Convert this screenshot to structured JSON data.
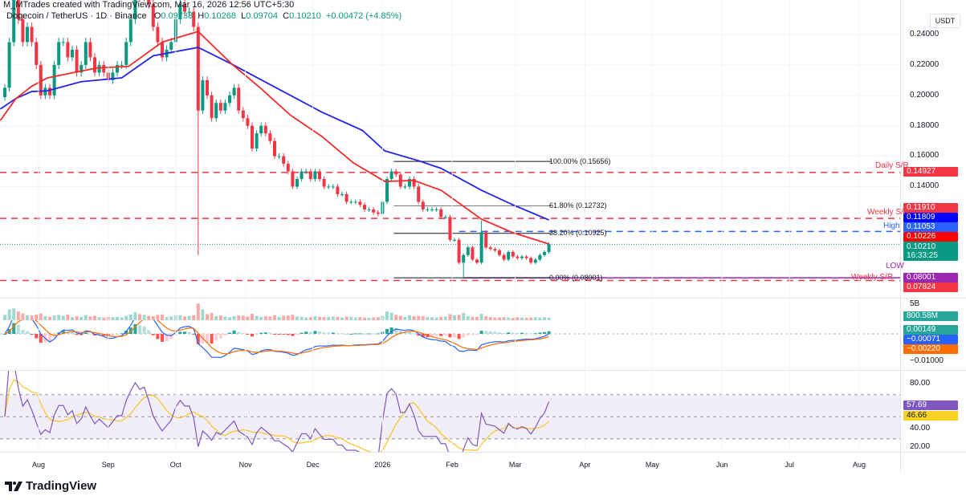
{
  "header": {
    "attribution": "M_MTrades created with TradingView.com, Mar 16, 2026 12:56 UTC+5:30",
    "symbol": "Dogecoin / TetherUS · 1D · Binance",
    "o_label": "O",
    "o": "0.09738",
    "h_label": "H",
    "h": "0.10268",
    "l_label": "L",
    "l": "0.09704",
    "c_label": "C",
    "c": "0.10210",
    "change": "+0.00472 (+4.85%)"
  },
  "price_axis": {
    "currency": "USDT",
    "ticks": [
      "0.24000",
      "0.22000",
      "0.20000",
      "0.18000",
      "0.16000",
      "0.14000"
    ],
    "tags": {
      "daily_sr": "0.14927",
      "weekly_sr": "0.11910",
      "ma_blue": "0.11809",
      "high": "0.11053",
      "ma_red": "0.10226",
      "last_price": "0.10210",
      "countdown": "16:33:25",
      "low": "0.08001",
      "weekly_sr_2": "0.07824"
    }
  },
  "lines": {
    "daily_sr_label": "Daily S/R",
    "weekly_sr_label": "Weekly S/R",
    "high_label": "High",
    "low_label": "LOW",
    "weekly_sr_2_label": "Weekly S/R"
  },
  "fib": {
    "l100": "100.00% (0.15656)",
    "l618": "61.80% (0.12732)",
    "l382": "38.20% (0.10925)",
    "l0": "0.00% (0.08001)"
  },
  "volume_axis": {
    "tick": "5B",
    "tag": "800.58M"
  },
  "macd_axis": {
    "tick": "−0.01000",
    "hist": "0.00149",
    "macd": "−0.00071",
    "signal": "−0.00220"
  },
  "rsi_axis": {
    "ticks": [
      "80.00",
      "40.00",
      "20.00"
    ],
    "rsi": "57.69",
    "rsi_ma": "46.66"
  },
  "time_axis": {
    "months": [
      [
        "Aug",
        "2025-08-01"
      ],
      [
        "Sep",
        "2025-09-01"
      ],
      [
        "Oct",
        "2025-10-01"
      ],
      [
        "Nov",
        "2025-11-01"
      ],
      [
        "Dec",
        "2025-12-01"
      ],
      [
        "2026",
        "2026-01-01"
      ],
      [
        "Feb",
        "2026-02-01"
      ],
      [
        "Mar",
        "2026-03-01"
      ],
      [
        "Apr",
        "2026-04-01"
      ],
      [
        "May",
        "2026-05-01"
      ],
      [
        "Jun",
        "2026-06-01"
      ],
      [
        "Jul",
        "2026-07-01"
      ],
      [
        "Aug",
        "2026-08-01"
      ]
    ]
  },
  "footer": {
    "brand": "TradingView"
  },
  "chart_data": {
    "type": "candlestick",
    "title": "Dogecoin / TetherUS · 1D · Binance",
    "colors": {
      "up": "#089981",
      "down": "#f23645",
      "ma_fast": "#f52a2a",
      "ma_slow": "#2424e8",
      "high_line": "#2962ff",
      "low_line": "#9c27b0",
      "rsi": "#7e57c2",
      "rsi_ma": "#f7c325",
      "macd": "#2962ff",
      "signal": "#ff6d00"
    },
    "ylim": [
      0.075,
      0.257
    ],
    "candles_date_close_volumeB": [
      [
        "2025-07-17",
        0.205,
        1.6
      ],
      [
        "2025-07-19",
        0.235,
        3.2
      ],
      [
        "2025-07-21",
        0.265,
        3.5
      ],
      [
        "2025-07-23",
        0.25,
        2.6
      ],
      [
        "2025-07-25",
        0.235,
        2.0
      ],
      [
        "2025-07-27",
        0.245,
        1.5
      ],
      [
        "2025-07-29",
        0.235,
        1.4
      ],
      [
        "2025-07-31",
        0.22,
        1.7
      ],
      [
        "2025-08-02",
        0.2,
        2.0
      ],
      [
        "2025-08-04",
        0.205,
        1.2
      ],
      [
        "2025-08-06",
        0.2,
        1.0
      ],
      [
        "2025-08-08",
        0.22,
        1.4
      ],
      [
        "2025-08-10",
        0.235,
        1.6
      ],
      [
        "2025-08-12",
        0.235,
        1.3
      ],
      [
        "2025-08-14",
        0.225,
        1.7
      ],
      [
        "2025-08-16",
        0.23,
        0.9
      ],
      [
        "2025-08-18",
        0.215,
        1.2
      ],
      [
        "2025-08-20",
        0.22,
        1.0
      ],
      [
        "2025-08-22",
        0.235,
        1.5
      ],
      [
        "2025-08-24",
        0.225,
        1.1
      ],
      [
        "2025-08-26",
        0.215,
        1.3
      ],
      [
        "2025-08-28",
        0.22,
        0.9
      ],
      [
        "2025-08-30",
        0.215,
        0.8
      ],
      [
        "2025-09-01",
        0.21,
        1.0
      ],
      [
        "2025-09-03",
        0.215,
        0.9
      ],
      [
        "2025-09-05",
        0.22,
        1.0
      ],
      [
        "2025-09-07",
        0.22,
        0.8
      ],
      [
        "2025-09-09",
        0.235,
        1.3
      ],
      [
        "2025-09-11",
        0.25,
        1.7
      ],
      [
        "2025-09-13",
        0.27,
        2.4
      ],
      [
        "2025-09-15",
        0.265,
        1.8
      ],
      [
        "2025-09-17",
        0.27,
        1.6
      ],
      [
        "2025-09-19",
        0.26,
        1.3
      ],
      [
        "2025-09-21",
        0.245,
        1.2
      ],
      [
        "2025-09-23",
        0.235,
        1.6
      ],
      [
        "2025-09-25",
        0.225,
        1.7
      ],
      [
        "2025-09-27",
        0.23,
        1.0
      ],
      [
        "2025-09-29",
        0.235,
        1.1
      ],
      [
        "2025-10-01",
        0.25,
        1.4
      ],
      [
        "2025-10-03",
        0.26,
        1.5
      ],
      [
        "2025-10-05",
        0.255,
        1.1
      ],
      [
        "2025-10-07",
        0.255,
        1.3
      ],
      [
        "2025-10-09",
        0.245,
        1.5
      ],
      [
        "2025-10-11",
        0.19,
        5.0
      ],
      [
        "2025-10-13",
        0.21,
        3.2
      ],
      [
        "2025-10-15",
        0.2,
        1.8
      ],
      [
        "2025-10-17",
        0.185,
        2.1
      ],
      [
        "2025-10-19",
        0.195,
        1.2
      ],
      [
        "2025-10-21",
        0.19,
        1.4
      ],
      [
        "2025-10-23",
        0.195,
        1.1
      ],
      [
        "2025-10-25",
        0.2,
        0.9
      ],
      [
        "2025-10-27",
        0.205,
        1.2
      ],
      [
        "2025-10-29",
        0.19,
        1.4
      ],
      [
        "2025-10-31",
        0.185,
        1.3
      ],
      [
        "2025-11-02",
        0.18,
        1.1
      ],
      [
        "2025-11-04",
        0.165,
        1.9
      ],
      [
        "2025-11-06",
        0.175,
        1.3
      ],
      [
        "2025-11-08",
        0.18,
        1.0
      ],
      [
        "2025-11-10",
        0.175,
        1.2
      ],
      [
        "2025-11-12",
        0.17,
        1.1
      ],
      [
        "2025-11-14",
        0.16,
        1.5
      ],
      [
        "2025-11-16",
        0.16,
        1.0
      ],
      [
        "2025-11-18",
        0.155,
        1.3
      ],
      [
        "2025-11-20",
        0.15,
        1.4
      ],
      [
        "2025-11-22",
        0.14,
        1.6
      ],
      [
        "2025-11-24",
        0.145,
        1.1
      ],
      [
        "2025-11-26",
        0.15,
        1.0
      ],
      [
        "2025-11-28",
        0.15,
        0.8
      ],
      [
        "2025-11-30",
        0.145,
        0.9
      ],
      [
        "2025-12-02",
        0.15,
        1.2
      ],
      [
        "2025-12-04",
        0.145,
        1.0
      ],
      [
        "2025-12-06",
        0.14,
        0.9
      ],
      [
        "2025-12-08",
        0.14,
        1.0
      ],
      [
        "2025-12-10",
        0.14,
        1.1
      ],
      [
        "2025-12-12",
        0.135,
        1.0
      ],
      [
        "2025-12-14",
        0.135,
        0.8
      ],
      [
        "2025-12-16",
        0.13,
        1.1
      ],
      [
        "2025-12-18",
        0.13,
        1.0
      ],
      [
        "2025-12-20",
        0.13,
        0.8
      ],
      [
        "2025-12-22",
        0.128,
        0.9
      ],
      [
        "2025-12-24",
        0.125,
        0.8
      ],
      [
        "2025-12-26",
        0.125,
        0.7
      ],
      [
        "2025-12-28",
        0.123,
        0.8
      ],
      [
        "2025-12-30",
        0.122,
        0.9
      ],
      [
        "2026-01-01",
        0.13,
        1.3
      ],
      [
        "2026-01-03",
        0.145,
        2.6
      ],
      [
        "2026-01-05",
        0.15,
        2.2
      ],
      [
        "2026-01-07",
        0.148,
        1.6
      ],
      [
        "2026-01-09",
        0.14,
        1.3
      ],
      [
        "2026-01-11",
        0.14,
        1.0
      ],
      [
        "2026-01-13",
        0.145,
        1.5
      ],
      [
        "2026-01-15",
        0.14,
        1.2
      ],
      [
        "2026-01-17",
        0.13,
        1.3
      ],
      [
        "2026-01-19",
        0.125,
        1.2
      ],
      [
        "2026-01-21",
        0.125,
        1.0
      ],
      [
        "2026-01-23",
        0.125,
        0.9
      ],
      [
        "2026-01-25",
        0.125,
        0.8
      ],
      [
        "2026-01-27",
        0.12,
        1.0
      ],
      [
        "2026-01-29",
        0.12,
        1.1
      ],
      [
        "2026-01-31",
        0.105,
        1.8
      ],
      [
        "2026-02-02",
        0.105,
        1.5
      ],
      [
        "2026-02-04",
        0.09,
        1.6
      ],
      [
        "2026-02-06",
        0.095,
        2.2
      ],
      [
        "2026-02-08",
        0.1,
        1.2
      ],
      [
        "2026-02-10",
        0.092,
        1.0
      ],
      [
        "2026-02-12",
        0.09,
        1.0
      ],
      [
        "2026-02-14",
        0.11,
        1.9
      ],
      [
        "2026-02-16",
        0.1,
        1.2
      ],
      [
        "2026-02-18",
        0.099,
        0.9
      ],
      [
        "2026-02-20",
        0.098,
        0.8
      ],
      [
        "2026-02-22",
        0.095,
        0.8
      ],
      [
        "2026-02-24",
        0.092,
        0.9
      ],
      [
        "2026-02-26",
        0.097,
        0.8
      ],
      [
        "2026-02-28",
        0.094,
        0.7
      ],
      [
        "2026-03-02",
        0.093,
        0.9
      ],
      [
        "2026-03-04",
        0.094,
        0.8
      ],
      [
        "2026-03-06",
        0.093,
        0.7
      ],
      [
        "2026-03-08",
        0.09,
        0.8
      ],
      [
        "2026-03-10",
        0.092,
        0.9
      ],
      [
        "2026-03-12",
        0.095,
        0.8
      ],
      [
        "2026-03-14",
        0.097,
        0.9
      ],
      [
        "2026-03-16",
        0.1021,
        0.8
      ]
    ],
    "notable_wicks": [
      [
        "2025-10-11",
        0.095
      ],
      [
        "2026-02-06",
        0.08001
      ],
      [
        "2026-02-14",
        0.1175
      ]
    ],
    "ma_red": [
      [
        "2025-07-15",
        0.1835
      ],
      [
        "2025-07-22",
        0.198
      ],
      [
        "2025-07-29",
        0.206
      ],
      [
        "2025-08-05",
        0.2115
      ],
      [
        "2025-08-20",
        0.216
      ],
      [
        "2025-08-27",
        0.218
      ],
      [
        "2025-09-10",
        0.219
      ],
      [
        "2025-09-25",
        0.235
      ],
      [
        "2025-10-11",
        0.242
      ],
      [
        "2025-10-26",
        0.2205
      ],
      [
        "2025-11-07",
        0.2057
      ],
      [
        "2025-11-21",
        0.187
      ],
      [
        "2025-12-05",
        0.173
      ],
      [
        "2025-12-19",
        0.1556
      ],
      [
        "2026-01-02",
        0.1434
      ],
      [
        "2026-01-15",
        0.144
      ],
      [
        "2026-01-27",
        0.1376
      ],
      [
        "2026-01-31",
        0.1334
      ],
      [
        "2026-02-14",
        0.1186
      ],
      [
        "2026-02-28",
        0.1097
      ],
      [
        "2026-03-16",
        0.10226
      ]
    ],
    "ma_blue": [
      [
        "2025-07-15",
        0.191
      ],
      [
        "2025-07-22",
        0.198
      ],
      [
        "2025-07-29",
        0.2025
      ],
      [
        "2025-08-05",
        0.203
      ],
      [
        "2025-08-20",
        0.209
      ],
      [
        "2025-09-07",
        0.2115
      ],
      [
        "2025-09-21",
        0.226
      ],
      [
        "2025-10-11",
        0.2315
      ],
      [
        "2025-10-26",
        0.2205
      ],
      [
        "2025-11-07",
        0.211
      ],
      [
        "2025-12-05",
        0.189
      ],
      [
        "2025-12-23",
        0.177
      ],
      [
        "2026-01-02",
        0.1635
      ],
      [
        "2026-01-17",
        0.157
      ],
      [
        "2026-01-27",
        0.152
      ],
      [
        "2026-02-14",
        0.1376
      ],
      [
        "2026-02-28",
        0.128
      ],
      [
        "2026-03-16",
        0.11809
      ]
    ],
    "levels": {
      "daily_sr": 0.14927,
      "weekly_sr": 0.1191,
      "high": 0.11053,
      "low": 0.08001,
      "weekly_sr_2": 0.07824,
      "last": 0.1021
    },
    "fib_levels": {
      "start": "2026-01-06",
      "end": "2026-03-17",
      "values": [
        0.15656,
        0.12732,
        0.10925,
        0.08001
      ]
    },
    "rsi_bands": [
      70,
      50,
      30
    ]
  }
}
